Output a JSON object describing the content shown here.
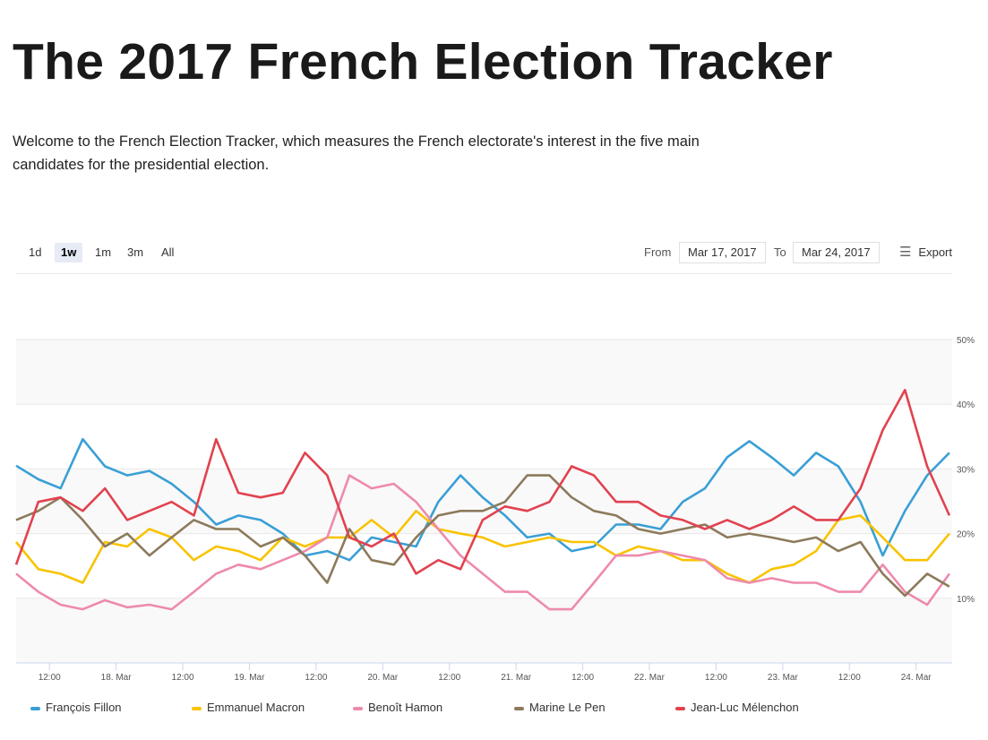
{
  "title": "The 2017 French Election Tracker",
  "intro": "Welcome to the French Election Tracker, which measures the French electorate's interest in the five main candidates for the presidential election.",
  "toolbar": {
    "ranges": [
      "1d",
      "1w",
      "1m",
      "3m",
      "All"
    ],
    "active_range": "1w",
    "from_label": "From",
    "from_value": "Mar 17, 2017",
    "to_label": "To",
    "to_value": "Mar 24, 2017",
    "export_label": "Export",
    "export_icon": "menu-icon"
  },
  "chart_data": {
    "type": "line",
    "title": "",
    "xlabel": "",
    "ylabel": "",
    "x_start": "Mar 17, 2017 06:00",
    "x_step_hours": 4,
    "ylim": [
      0,
      50
    ],
    "y_ticks": [
      10,
      20,
      30,
      40,
      50
    ],
    "y_tick_labels": [
      "10%",
      "20%",
      "30%",
      "40%",
      "50%"
    ],
    "x_ticks_hours": [
      6,
      18,
      30,
      42,
      54,
      66,
      78,
      90,
      102,
      114,
      126,
      138,
      150,
      162
    ],
    "x_tick_labels": [
      "12:00",
      "18. Mar",
      "12:00",
      "19. Mar",
      "12:00",
      "20. Mar",
      "12:00",
      "21. Mar",
      "12:00",
      "22. Mar",
      "12:00",
      "23. Mar",
      "12:00",
      "24. Mar"
    ],
    "legend_position": "bottom",
    "grid": true,
    "series": [
      {
        "name": "François Fillon",
        "color": "#3a9fd6",
        "values": [
          30.5,
          28.4,
          27,
          34.6,
          30.4,
          29,
          29.7,
          27.7,
          24.9,
          21.4,
          22.8,
          22.1,
          20,
          16.6,
          17.3,
          15.9,
          19.4,
          18.7,
          18,
          24.9,
          29,
          25.6,
          22.8,
          19.4,
          20,
          17.3,
          18,
          21.4,
          21.4,
          20.7,
          24.9,
          27,
          31.8,
          34.3,
          31.8,
          29,
          32.5,
          30.4,
          24.9,
          16.6,
          23.5,
          29,
          32.5
        ]
      },
      {
        "name": "Emmanuel Macron",
        "color": "#f9c300",
        "values": [
          18.7,
          14.5,
          13.8,
          12.4,
          18.7,
          18,
          20.7,
          19.4,
          15.9,
          18,
          17.3,
          15.9,
          19.4,
          18,
          19.4,
          19.4,
          22.1,
          19.4,
          23.5,
          20.7,
          20,
          19.4,
          18,
          18.7,
          19.4,
          18.7,
          18.7,
          16.6,
          18,
          17.3,
          15.9,
          15.9,
          13.8,
          12.4,
          14.5,
          15.2,
          17.3,
          22.1,
          22.8,
          19.4,
          15.9,
          15.9,
          20
        ]
      },
      {
        "name": "Benoît Hamon",
        "color": "#ee8aac",
        "values": [
          13.8,
          11,
          9,
          8.3,
          9.7,
          8.6,
          9,
          8.3,
          11,
          13.8,
          15.2,
          14.5,
          15.9,
          17.3,
          19.4,
          29,
          27,
          27.7,
          24.9,
          20.7,
          16.6,
          13.8,
          11,
          11,
          8.3,
          8.3,
          12.4,
          16.6,
          16.6,
          17.3,
          16.6,
          15.9,
          13.1,
          12.4,
          13.1,
          12.4,
          12.4,
          11,
          11,
          15.2,
          11,
          9,
          13.8
        ]
      },
      {
        "name": "Marine Le Pen",
        "color": "#8c7a5b",
        "values": [
          22.1,
          23.5,
          25.6,
          22.1,
          18,
          20,
          16.6,
          19.4,
          22.1,
          20.7,
          20.7,
          18,
          19.4,
          16.6,
          12.4,
          20.7,
          15.9,
          15.2,
          19.4,
          22.8,
          23.5,
          23.5,
          24.9,
          29,
          29,
          25.6,
          23.5,
          22.8,
          20.7,
          20,
          20.7,
          21.4,
          19.4,
          20,
          19.4,
          18.7,
          19.4,
          17.3,
          18.7,
          13.8,
          10.4,
          13.8,
          11.8
        ]
      },
      {
        "name": "Jean-Luc Mélenchon",
        "color": "#e1424f",
        "values": [
          15.2,
          24.9,
          25.6,
          23.5,
          27,
          22.1,
          23.5,
          24.9,
          22.8,
          34.6,
          26.3,
          25.6,
          26.3,
          32.5,
          29,
          19.4,
          18,
          20,
          13.8,
          15.9,
          14.5,
          22.1,
          24.2,
          23.5,
          24.9,
          30.4,
          29,
          24.9,
          24.9,
          22.8,
          22.1,
          20.7,
          22.1,
          20.7,
          22.1,
          24.2,
          22.1,
          22.1,
          27,
          36,
          42.2,
          30.4,
          22.8
        ]
      }
    ]
  }
}
